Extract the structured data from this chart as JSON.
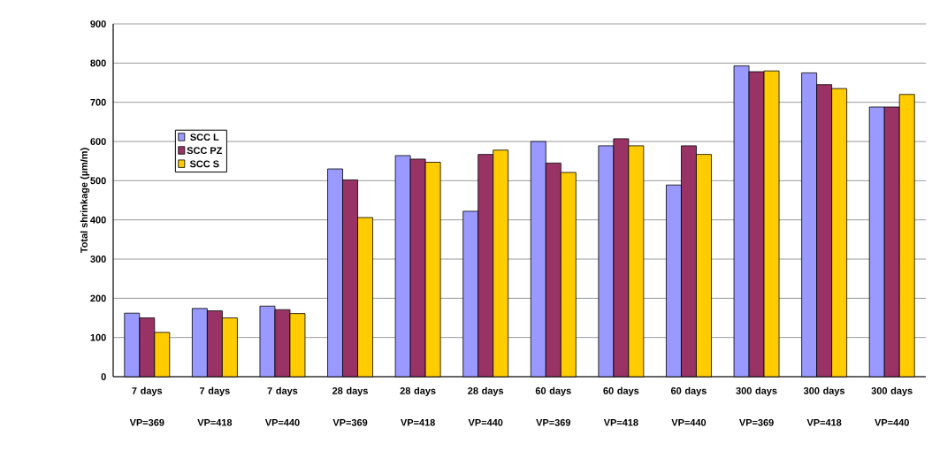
{
  "chart_data": {
    "type": "bar",
    "ylabel": "Total shrinkage (µm/m)",
    "categories": [
      "7 days VP=369",
      "7 days VP=418",
      "7 days VP=440",
      "28 days VP=369",
      "28 days VP=418",
      "28 days VP=440",
      "60 days VP=369",
      "60 days VP=418",
      "60 days VP=440",
      "300 days VP=369",
      "300 days VP=418",
      "300 days VP=440"
    ],
    "series": [
      {
        "name": "SCC L",
        "color": "#9999ff",
        "values": [
          162,
          174,
          180,
          530,
          564,
          422,
          600,
          589,
          489,
          793,
          775,
          688
        ]
      },
      {
        "name": "SCC PZ",
        "color": "#993366",
        "values": [
          150,
          168,
          171,
          502,
          555,
          567,
          545,
          607,
          589,
          778,
          745,
          688
        ]
      },
      {
        "name": "SCC S",
        "color": "#ffcc00",
        "values": [
          113,
          150,
          161,
          406,
          547,
          578,
          521,
          589,
          567,
          780,
          735,
          720
        ]
      }
    ],
    "ylim": [
      0,
      900
    ],
    "yticks": [
      0,
      100,
      200,
      300,
      400,
      500,
      600,
      700,
      800,
      900
    ],
    "grid": "y",
    "legend": "left"
  }
}
